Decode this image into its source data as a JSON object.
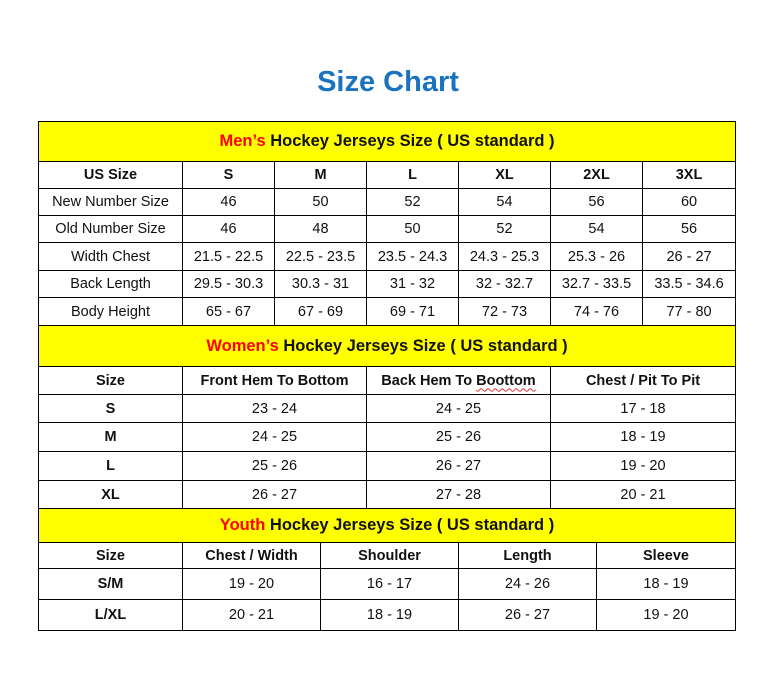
{
  "title": "Size Chart",
  "colors": {
    "title": "#1a73c0",
    "header_bg": "#ffff00",
    "highlight": "#ff0000"
  },
  "sections": [
    {
      "id": "men",
      "highlight": "Men’s",
      "heading": " Hockey Jerseys Size ( US standard )",
      "columns": [
        "US Size",
        "S",
        "M",
        "L",
        "XL",
        "2XL",
        "3XL"
      ],
      "rows": [
        [
          "New Number Size",
          "46",
          "50",
          "52",
          "54",
          "56",
          "60"
        ],
        [
          "Old Number Size",
          "46",
          "48",
          "50",
          "52",
          "54",
          "56"
        ],
        [
          "Width Chest",
          "21.5 - 22.5",
          "22.5 - 23.5",
          "23.5 - 24.3",
          "24.3 - 25.3",
          "25.3 - 26",
          "26 - 27"
        ],
        [
          "Back Length",
          "29.5 - 30.3",
          "30.3 - 31",
          "31 - 32",
          "32 - 32.7",
          "32.7 - 33.5",
          "33.5 - 34.6"
        ],
        [
          "Body Height",
          "65 - 67",
          "67 - 69",
          "69 - 71",
          "72 - 73",
          "74 - 76",
          "77 - 80"
        ]
      ]
    },
    {
      "id": "women",
      "highlight": "Women’s",
      "heading": " Hockey Jerseys Size ( US standard )",
      "columns": [
        "Size",
        "Front Hem To Bottom",
        "Back Hem To Boottom",
        "Chest / Pit To Pit"
      ],
      "rows": [
        [
          "S",
          "23 - 24",
          "24 - 25",
          "17 - 18"
        ],
        [
          "M",
          "24 - 25",
          "25 - 26",
          "18 - 19"
        ],
        [
          "L",
          "25 - 26",
          "26 - 27",
          "19 - 20"
        ],
        [
          "XL",
          "26 - 27",
          "27 - 28",
          "20 - 21"
        ]
      ]
    },
    {
      "id": "youth",
      "highlight": "Youth",
      "heading": " Hockey Jerseys Size ( US standard )",
      "columns": [
        "Size",
        "Chest / Width",
        "Shoulder",
        "Length",
        "Sleeve"
      ],
      "rows": [
        [
          "S/M",
          "19 - 20",
          "16 - 17",
          "24 - 26",
          "18 - 19"
        ],
        [
          "L/XL",
          "20 - 21",
          "18 - 19",
          "26 - 27",
          "19 - 20"
        ]
      ]
    }
  ]
}
